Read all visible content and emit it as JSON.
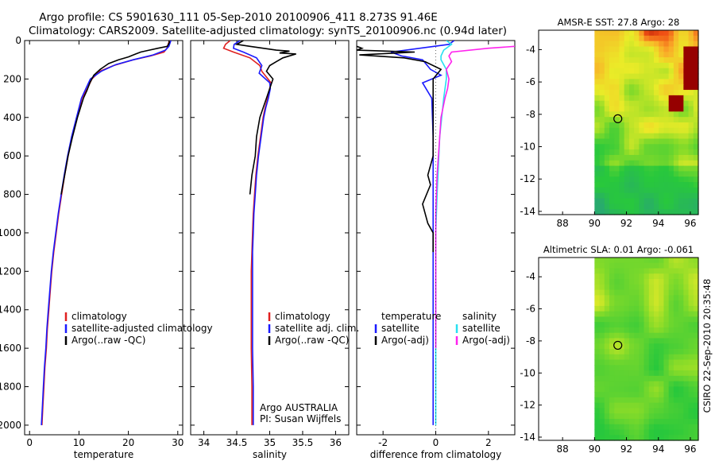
{
  "header": {
    "title_line1": "Argo profile: CS 5901630_111 05-Sep-2010 20100906_411 8.273S 91.46E",
    "title_line2": "Climatology: CARS2009. Satellite-adjusted climatology: synTS_20100906.nc (0.94d later)"
  },
  "colors": {
    "climatology": "#e02020",
    "satellite": "#1a1aff",
    "argo": "#000000",
    "sal_satellite": "#28e0f0",
    "sal_argo": "#ff22ee"
  },
  "chart_data": [
    {
      "id": "temperature",
      "type": "line",
      "xlabel": "temperature",
      "xlim": [
        -1,
        31
      ],
      "ylim": [
        2050,
        0
      ],
      "xticks": [
        0,
        10,
        20,
        30
      ],
      "yticks": [
        0,
        200,
        400,
        600,
        800,
        1000,
        1200,
        1400,
        1600,
        1800,
        2000
      ],
      "legend": {
        "placement": "lower-right",
        "entries": [
          "climatology",
          "satellite-adjusted climatology",
          "Argo(..raw -QC)"
        ]
      },
      "series": [
        {
          "name": "climatology",
          "color": "red",
          "points": [
            [
              28.3,
              0
            ],
            [
              27.8,
              40
            ],
            [
              27.2,
              60
            ],
            [
              24.5,
              80
            ],
            [
              21,
              100
            ],
            [
              17,
              130
            ],
            [
              14.2,
              160
            ],
            [
              12.6,
              200
            ],
            [
              11.7,
              250
            ],
            [
              10.6,
              300
            ],
            [
              9.6,
              400
            ],
            [
              8.6,
              500
            ],
            [
              7.8,
              600
            ],
            [
              7.1,
              700
            ],
            [
              6.5,
              800
            ],
            [
              5.9,
              900
            ],
            [
              5.4,
              1000
            ],
            [
              4.9,
              1100
            ],
            [
              4.5,
              1200
            ],
            [
              4.2,
              1300
            ],
            [
              3.9,
              1400
            ],
            [
              3.6,
              1500
            ],
            [
              3.4,
              1600
            ],
            [
              3.1,
              1700
            ],
            [
              2.9,
              1800
            ],
            [
              2.7,
              1900
            ],
            [
              2.5,
              2000
            ]
          ]
        },
        {
          "name": "satellite-adjusted climatology",
          "color": "blue",
          "points": [
            [
              28.6,
              0
            ],
            [
              28.2,
              30
            ],
            [
              27.5,
              50
            ],
            [
              25,
              75
            ],
            [
              21,
              100
            ],
            [
              17.5,
              125
            ],
            [
              14.5,
              160
            ],
            [
              12.3,
              200
            ],
            [
              11.4,
              250
            ],
            [
              10.5,
              300
            ],
            [
              9.5,
              400
            ],
            [
              8.5,
              500
            ],
            [
              7.7,
              600
            ],
            [
              7.0,
              700
            ],
            [
              6.4,
              800
            ],
            [
              5.8,
              900
            ],
            [
              5.3,
              1000
            ],
            [
              4.8,
              1100
            ],
            [
              4.4,
              1200
            ],
            [
              4.1,
              1300
            ],
            [
              3.8,
              1400
            ],
            [
              3.5,
              1500
            ],
            [
              3.3,
              1600
            ],
            [
              3.0,
              1700
            ],
            [
              2.8,
              1800
            ],
            [
              2.6,
              1900
            ],
            [
              2.4,
              2000
            ]
          ]
        },
        {
          "name": "Argo(..raw -QC)",
          "color": "black",
          "points": [
            [
              28.2,
              0
            ],
            [
              28.3,
              10
            ],
            [
              27.9,
              30
            ],
            [
              26,
              40
            ],
            [
              24.2,
              50
            ],
            [
              22.5,
              60
            ],
            [
              21.5,
              70
            ],
            [
              20,
              85
            ],
            [
              18,
              100
            ],
            [
              16,
              120
            ],
            [
              14.3,
              150
            ],
            [
              13,
              180
            ],
            [
              12.2,
              220
            ],
            [
              11.6,
              260
            ],
            [
              10.9,
              300
            ],
            [
              9.7,
              400
            ],
            [
              8.7,
              500
            ],
            [
              7.8,
              600
            ],
            [
              7.1,
              700
            ],
            [
              6.4,
              800
            ]
          ]
        }
      ]
    },
    {
      "id": "salinity",
      "type": "line",
      "xlabel": "salinity",
      "xlim": [
        33.8,
        36.2
      ],
      "ylim": [
        2050,
        0
      ],
      "xticks": [
        34,
        34.5,
        35,
        35.5,
        36
      ],
      "xticklabels": [
        "34",
        "34.5",
        "35",
        "35.5",
        "36"
      ],
      "legend": {
        "placement": "lower-right",
        "entries": [
          "climatology",
          "satellite adj. clim.",
          "Argo(..raw -QC)"
        ]
      },
      "annotation": [
        "Argo AUSTRALIA",
        "PI: Susan Wijffels"
      ],
      "series": [
        {
          "name": "climatology",
          "color": "red",
          "points": [
            [
              34.4,
              0
            ],
            [
              34.33,
              20
            ],
            [
              34.3,
              40
            ],
            [
              34.45,
              60
            ],
            [
              34.7,
              90
            ],
            [
              34.85,
              130
            ],
            [
              34.88,
              160
            ],
            [
              35.02,
              220
            ],
            [
              35.0,
              250
            ],
            [
              34.97,
              300
            ],
            [
              34.93,
              350
            ],
            [
              34.9,
              400
            ],
            [
              34.86,
              500
            ],
            [
              34.82,
              600
            ],
            [
              34.79,
              700
            ],
            [
              34.77,
              800
            ],
            [
              34.75,
              900
            ],
            [
              34.74,
              1000
            ],
            [
              34.73,
              1100
            ],
            [
              34.72,
              1200
            ],
            [
              34.72,
              1300
            ],
            [
              34.72,
              1400
            ],
            [
              34.72,
              1600
            ],
            [
              34.73,
              1800
            ],
            [
              34.73,
              2000
            ]
          ]
        },
        {
          "name": "satellite adj. clim.",
          "color": "blue",
          "points": [
            [
              34.55,
              0
            ],
            [
              34.46,
              20
            ],
            [
              34.45,
              40
            ],
            [
              34.6,
              60
            ],
            [
              34.8,
              90
            ],
            [
              34.88,
              130
            ],
            [
              34.84,
              170
            ],
            [
              35.0,
              220
            ],
            [
              35.01,
              250
            ],
            [
              34.98,
              300
            ],
            [
              34.94,
              350
            ],
            [
              34.91,
              400
            ],
            [
              34.87,
              500
            ],
            [
              34.83,
              600
            ],
            [
              34.8,
              700
            ],
            [
              34.78,
              800
            ],
            [
              34.76,
              900
            ],
            [
              34.75,
              1000
            ],
            [
              34.74,
              1100
            ],
            [
              34.74,
              1200
            ],
            [
              34.74,
              1300
            ],
            [
              34.74,
              1400
            ],
            [
              34.74,
              1600
            ],
            [
              34.75,
              1800
            ],
            [
              34.75,
              2000
            ]
          ]
        },
        {
          "name": "Argo(..raw -QC)",
          "color": "black",
          "points": [
            [
              34.6,
              0
            ],
            [
              34.5,
              20
            ],
            [
              34.7,
              30
            ],
            [
              34.9,
              40
            ],
            [
              35.1,
              50
            ],
            [
              35.3,
              55
            ],
            [
              35.15,
              65
            ],
            [
              35.4,
              70
            ],
            [
              35.2,
              90
            ],
            [
              35.1,
              110
            ],
            [
              35.0,
              130
            ],
            [
              34.95,
              160
            ],
            [
              35.05,
              200
            ],
            [
              35.0,
              250
            ],
            [
              34.95,
              300
            ],
            [
              34.9,
              350
            ],
            [
              34.85,
              400
            ],
            [
              34.8,
              500
            ],
            [
              34.78,
              600
            ],
            [
              34.73,
              700
            ],
            [
              34.7,
              800
            ]
          ]
        }
      ]
    },
    {
      "id": "difference",
      "type": "line",
      "xlabel": "difference from climatology",
      "xlim": [
        -3,
        3
      ],
      "ylim": [
        2050,
        0
      ],
      "xticks": [
        -2,
        0,
        2
      ],
      "legend": {
        "placement": "lower-center",
        "columns": [
          [
            "temperature",
            "satellite",
            "Argo(-adj)"
          ],
          [
            "salinity",
            "satellite",
            "Argo(-adj)"
          ]
        ]
      },
      "series": [
        {
          "name": "temperature satellite",
          "color": "blue",
          "points": [
            [
              0.7,
              0
            ],
            [
              0.5,
              20
            ],
            [
              -1.7,
              60
            ],
            [
              -1.3,
              80
            ],
            [
              -0.5,
              100
            ],
            [
              -0.2,
              150
            ],
            [
              0.2,
              180
            ],
            [
              -0.5,
              220
            ],
            [
              -0.15,
              300
            ],
            [
              -0.1,
              500
            ],
            [
              -0.1,
              1000
            ],
            [
              -0.1,
              1500
            ],
            [
              -0.1,
              2000
            ]
          ]
        },
        {
          "name": "temperature Argo(-adj)",
          "color": "black",
          "points": [
            [
              -3,
              30
            ],
            [
              -2.8,
              40
            ],
            [
              -3,
              50
            ],
            [
              -0.8,
              60
            ],
            [
              -2.9,
              75
            ],
            [
              -1.2,
              90
            ],
            [
              -0.4,
              110
            ],
            [
              0.2,
              150
            ],
            [
              -0.1,
              200
            ],
            [
              -0.1,
              400
            ],
            [
              -0.1,
              600
            ],
            [
              -0.3,
              700
            ],
            [
              -0.2,
              750
            ],
            [
              -0.5,
              850
            ],
            [
              -0.3,
              950
            ],
            [
              -0.1,
              1000
            ],
            [
              -0.1,
              1100
            ]
          ]
        },
        {
          "name": "salinity satellite",
          "color": "cyan",
          "points": [
            [
              0.4,
              0
            ],
            [
              0.6,
              20
            ],
            [
              0.3,
              50
            ],
            [
              0.2,
              80
            ],
            [
              0.2,
              100
            ],
            [
              0.4,
              150
            ],
            [
              0.4,
              200
            ],
            [
              0.3,
              300
            ],
            [
              0.15,
              500
            ],
            [
              0.05,
              800
            ],
            [
              0.0,
              1000
            ],
            [
              0.0,
              1500
            ],
            [
              0.0,
              2000
            ]
          ]
        },
        {
          "name": "salinity Argo(-adj)",
          "color": "magenta",
          "points": [
            [
              3,
              30
            ],
            [
              2.0,
              40
            ],
            [
              0.6,
              60
            ],
            [
              0.5,
              80
            ],
            [
              0.6,
              110
            ],
            [
              0.4,
              150
            ],
            [
              0.5,
              200
            ],
            [
              0.45,
              250
            ],
            [
              0.35,
              300
            ],
            [
              0.2,
              400
            ],
            [
              0.15,
              500
            ],
            [
              0.05,
              700
            ],
            [
              0.0,
              900
            ],
            [
              0.0,
              1100
            ],
            [
              0.0,
              1400
            ],
            [
              0.0,
              1600
            ]
          ]
        }
      ]
    },
    {
      "id": "sst_map",
      "type": "heatmap",
      "title": "AMSR-E SST: 27.8 Argo: 28",
      "xlim": [
        86.5,
        96.5
      ],
      "ylim": [
        -14.2,
        -2.8
      ],
      "xticks": [
        88,
        90,
        92,
        94,
        96
      ],
      "yticks": [
        -4,
        -6,
        -8,
        -10,
        -12,
        -14
      ],
      "marker": {
        "lon": 91.46,
        "lat": -8.273
      }
    },
    {
      "id": "sla_map",
      "type": "heatmap",
      "title": "Altimetric SLA: 0.01 Argo: -0.061",
      "xlim": [
        86.5,
        96.5
      ],
      "ylim": [
        -14.2,
        -2.8
      ],
      "xticks": [
        88,
        90,
        92,
        94,
        96
      ],
      "yticks": [
        -4,
        -6,
        -8,
        -10,
        -12,
        -14
      ],
      "marker": {
        "lon": 91.46,
        "lat": -8.273
      }
    }
  ],
  "footer": {
    "credit": "CSIRO 22-Sep-2010 20:35:48"
  }
}
